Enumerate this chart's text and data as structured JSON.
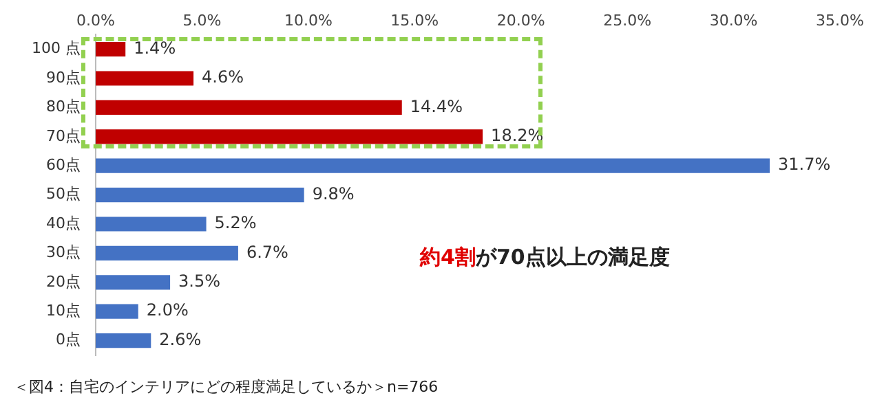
{
  "chart_data": {
    "type": "bar",
    "orientation": "horizontal",
    "categories": [
      "100 点",
      "90点",
      "80点",
      "70点",
      "60点",
      "50点",
      "40点",
      "30点",
      "20点",
      "10点",
      "0点"
    ],
    "values": [
      1.4,
      4.6,
      14.4,
      18.2,
      31.7,
      9.8,
      5.2,
      6.7,
      3.5,
      2.0,
      2.6
    ],
    "colors": [
      "#c00000",
      "#c00000",
      "#c00000",
      "#c00000",
      "#4472c4",
      "#4472c4",
      "#4472c4",
      "#4472c4",
      "#4472c4",
      "#4472c4",
      "#4472c4"
    ],
    "value_labels": [
      "1.4%",
      "4.6%",
      "14.4%",
      "18.2%",
      "31.7%",
      "9.8%",
      "5.2%",
      "6.7%",
      "3.5%",
      "2.0%",
      "2.6%"
    ],
    "xlim": [
      0,
      35
    ],
    "xticks": [
      {
        "value": 0,
        "label": "0.0%"
      },
      {
        "value": 5,
        "label": "5.0%"
      },
      {
        "value": 10,
        "label": "10.0%"
      },
      {
        "value": 15,
        "label": "15.0%"
      },
      {
        "value": 20,
        "label": "20.0%"
      },
      {
        "value": 25,
        "label": "25.0%"
      },
      {
        "value": 30,
        "label": "30.0%"
      },
      {
        "value": 35,
        "label": "35.0%"
      }
    ],
    "grid": false,
    "legend": false,
    "annotations": [
      "約4割",
      "が70点以上の満足度",
      "＜図4：自宅のインテリアにどの程度満足しているか＞n=766"
    ]
  }
}
